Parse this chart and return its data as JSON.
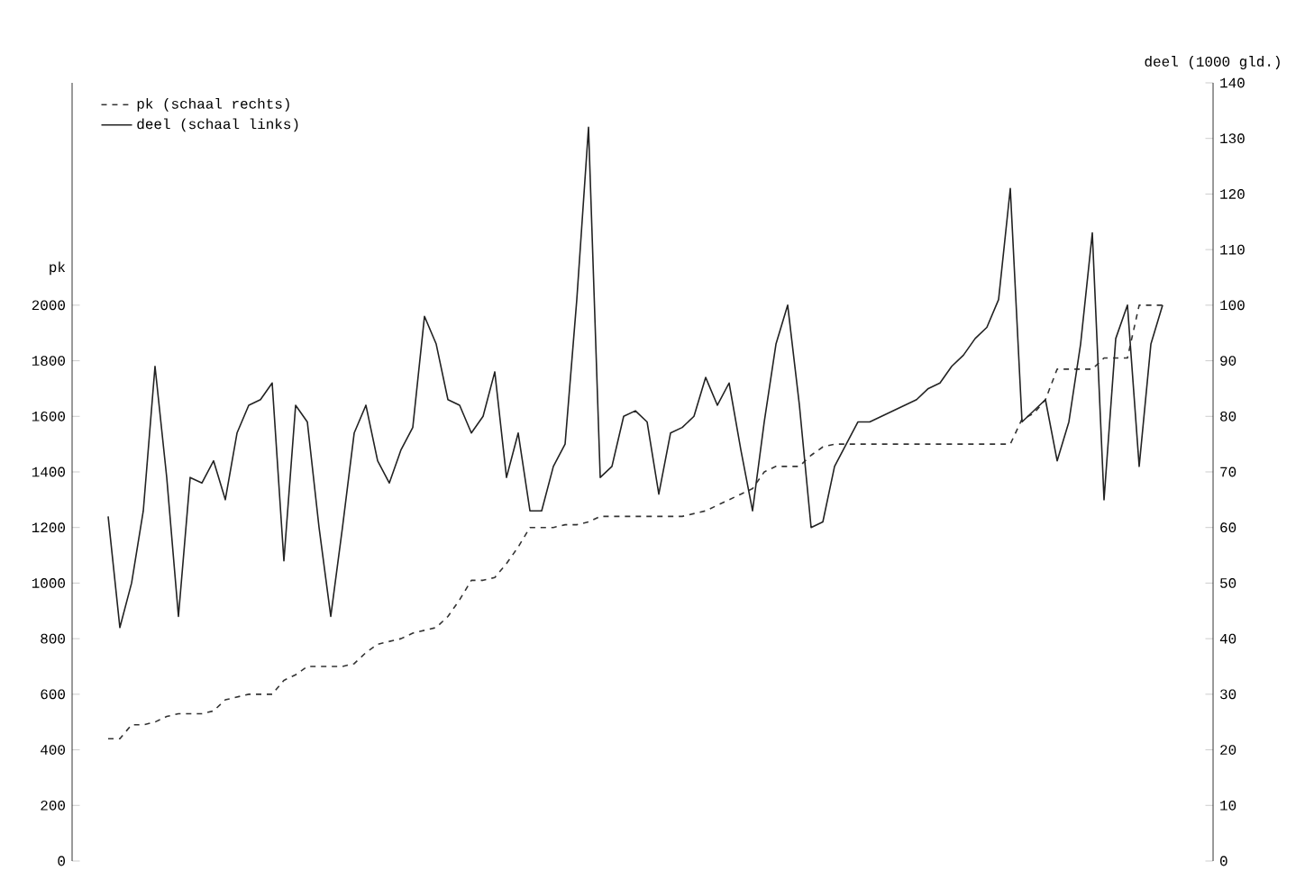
{
  "chart_data": {
    "type": "line",
    "ylabel": "pk",
    "y2label": "deel (1000 gld.)",
    "categories": [
      null,
      null,
      null,
      null,
      null,
      null,
      null,
      null,
      null,
      null,
      null,
      null,
      null,
      null,
      null,
      null,
      null,
      null,
      null,
      null,
      null,
      null,
      null,
      null,
      null,
      null,
      null,
      null,
      null,
      null,
      null,
      null,
      null,
      null,
      null,
      null,
      null,
      null,
      null,
      null,
      null,
      null,
      null,
      null,
      null,
      null,
      null,
      null,
      null,
      null,
      null,
      null,
      null,
      null,
      null,
      null,
      null,
      null,
      null,
      null,
      null,
      null,
      null,
      null,
      null,
      null,
      null,
      null,
      null,
      null,
      null,
      null,
      null,
      null,
      null,
      null,
      null,
      null,
      null,
      null,
      null,
      null,
      null,
      null,
      null,
      null,
      null,
      null,
      null,
      null,
      null
    ],
    "series": [
      {
        "name": "pk   (schaal rechts)",
        "color": "#333333",
        "line_style": "dashed",
        "axis": "y",
        "values": [
          440,
          440,
          490,
          490,
          500,
          520,
          530,
          530,
          530,
          540,
          580,
          590,
          600,
          600,
          600,
          650,
          670,
          700,
          700,
          700,
          700,
          710,
          750,
          780,
          790,
          800,
          820,
          830,
          840,
          880,
          940,
          1010,
          1010,
          1020,
          1070,
          1130,
          1200,
          1200,
          1200,
          1210,
          1210,
          1220,
          1240,
          1240,
          1240,
          1240,
          1240,
          1240,
          1240,
          1240,
          1250,
          1260,
          1280,
          1300,
          1320,
          1340,
          1400,
          1420,
          1420,
          1420,
          1460,
          1490,
          1500,
          1500,
          1500,
          1500,
          1500,
          1500,
          1500,
          1500,
          1500,
          1500,
          1500,
          1500,
          1500,
          1500,
          1500,
          1500,
          1590,
          1610,
          1660,
          1770,
          1770,
          1770,
          1770,
          1810,
          1810,
          1810,
          2000,
          2000,
          2000
        ]
      },
      {
        "name": "deel (schaal links)",
        "color": "#222222",
        "line_style": "solid",
        "axis": "y2",
        "values": [
          62,
          42,
          50,
          63,
          89,
          69,
          44,
          69,
          68,
          72,
          65,
          77,
          82,
          83,
          86,
          54,
          82,
          79,
          60,
          44,
          60,
          77,
          82,
          72,
          68,
          74,
          78,
          98,
          93,
          83,
          82,
          77,
          80,
          88,
          69,
          77,
          63,
          63,
          71,
          75,
          101,
          132,
          69,
          71,
          80,
          81,
          79,
          66,
          77,
          78,
          80,
          87,
          82,
          86,
          74,
          63,
          79,
          93,
          100,
          82,
          60,
          61,
          71,
          75,
          79,
          79,
          80,
          81,
          82,
          83,
          85,
          86,
          89,
          91,
          94,
          96,
          101,
          121,
          79,
          81,
          83,
          72,
          79,
          93,
          113,
          65,
          94,
          100,
          71,
          93,
          100
        ]
      }
    ],
    "ylim": [
      0,
      2800
    ],
    "yticks": [
      0,
      200,
      400,
      600,
      800,
      1000,
      1200,
      1400,
      1600,
      1800,
      2000
    ],
    "y2lim": [
      0,
      140
    ],
    "y2ticks": [
      0,
      10,
      20,
      30,
      40,
      50,
      60,
      70,
      80,
      90,
      100,
      110,
      120,
      130,
      140
    ],
    "legend": "top left",
    "marker": "none",
    "grid": false
  }
}
